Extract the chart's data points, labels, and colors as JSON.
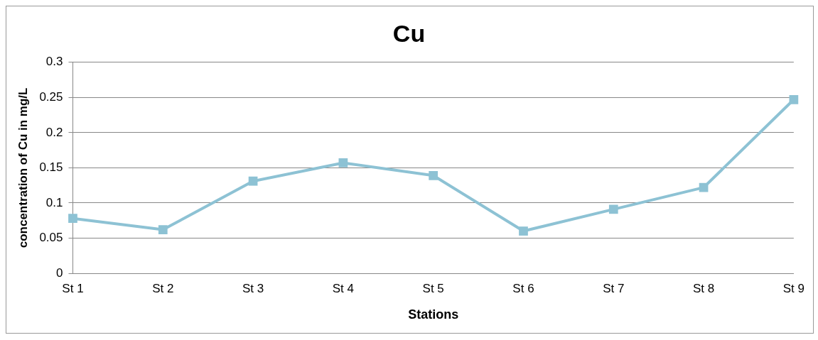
{
  "chart_data": {
    "type": "line",
    "title": "Cu",
    "xlabel": "Stations",
    "ylabel": "concentration of Cu in mg/L",
    "categories": [
      "St 1",
      "St 2",
      "St 3",
      "St 4",
      "St 5",
      "St 6",
      "St 7",
      "St 8",
      "St 9"
    ],
    "series": [
      {
        "color": "#8dc2d4",
        "values": [
          0.078,
          0.062,
          0.131,
          0.157,
          0.139,
          0.06,
          0.091,
          0.122,
          0.247
        ]
      }
    ],
    "ylim": [
      0,
      0.3
    ],
    "yticks": [
      0,
      0.05,
      0.1,
      0.15,
      0.2,
      0.25,
      0.3
    ],
    "grid": "y",
    "legend": false,
    "marker": "square",
    "line_style": "solid"
  }
}
